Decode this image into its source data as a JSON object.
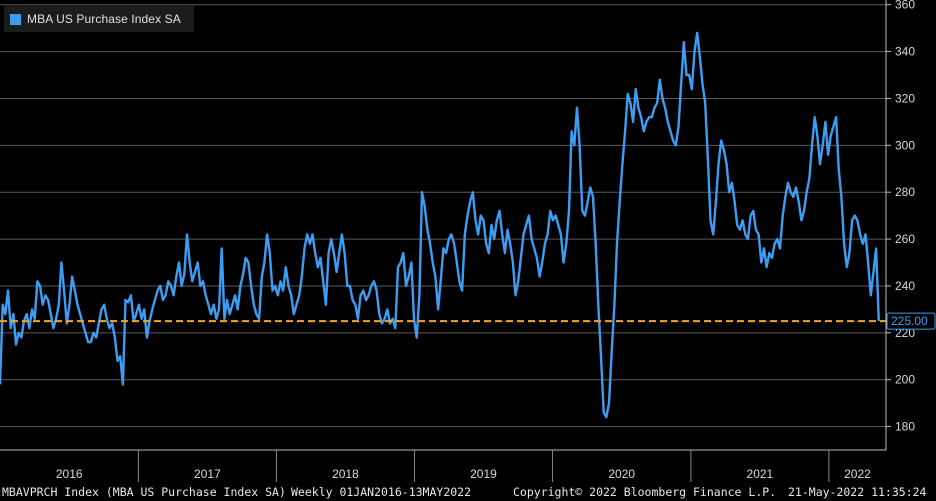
{
  "chart_data": {
    "type": "line",
    "title": "",
    "xlabel": "",
    "ylabel": "",
    "ylim": [
      170,
      362
    ],
    "yticks": [
      180,
      200,
      220,
      240,
      260,
      280,
      300,
      320,
      340,
      360
    ],
    "year_labels": [
      "2016",
      "2017",
      "2018",
      "2019",
      "2020",
      "2021",
      "2022"
    ],
    "grid": true,
    "legend_position": "top-left",
    "series": [
      {
        "name": "MBA US Purchase Index SA",
        "color": "#3d9df3",
        "x_start": "2016-01-01",
        "x_end": "2022-05-13",
        "values": [
          198,
          232,
          228,
          238,
          222,
          228,
          215,
          220,
          218,
          225,
          228,
          222,
          230,
          226,
          242,
          240,
          232,
          236,
          234,
          228,
          222,
          226,
          232,
          250,
          238,
          224,
          232,
          244,
          238,
          232,
          228,
          224,
          220,
          216,
          216,
          220,
          218,
          224,
          230,
          232,
          226,
          222,
          224,
          218,
          208,
          210,
          198,
          234,
          233,
          236,
          225,
          228,
          232,
          226,
          230,
          218,
          225,
          230,
          234,
          238,
          240,
          234,
          236,
          242,
          240,
          236,
          244,
          250,
          240,
          245,
          262,
          250,
          242,
          246,
          250,
          240,
          242,
          236,
          232,
          228,
          232,
          226,
          230,
          256,
          226,
          234,
          228,
          232,
          236,
          230,
          240,
          245,
          252,
          250,
          240,
          232,
          228,
          226,
          244,
          250,
          262,
          254,
          238,
          240,
          236,
          242,
          238,
          248,
          240,
          236,
          228,
          232,
          236,
          244,
          256,
          262,
          258,
          262,
          254,
          248,
          252,
          242,
          232,
          254,
          260,
          254,
          246,
          254,
          262,
          254,
          240,
          240,
          234,
          232,
          226,
          236,
          238,
          234,
          236,
          240,
          242,
          238,
          228,
          224,
          226,
          230,
          224,
          226,
          222,
          248,
          250,
          254,
          240,
          244,
          250,
          226,
          218,
          236,
          280,
          274,
          264,
          258,
          250,
          244,
          230,
          242,
          256,
          254,
          260,
          262,
          258,
          250,
          242,
          238,
          262,
          270,
          276,
          280,
          268,
          262,
          270,
          268,
          258,
          254,
          266,
          260,
          268,
          272,
          262,
          254,
          264,
          258,
          250,
          236,
          242,
          252,
          262,
          266,
          270,
          260,
          256,
          252,
          244,
          250,
          258,
          262,
          272,
          268,
          270,
          266,
          262,
          250,
          258,
          272,
          306,
          300,
          316,
          300,
          272,
          270,
          276,
          282,
          278,
          258,
          232,
          210,
          186,
          184,
          190,
          212,
          232,
          258,
          276,
          292,
          306,
          322,
          318,
          310,
          324,
          316,
          312,
          306,
          310,
          312,
          312,
          316,
          318,
          328,
          320,
          316,
          310,
          306,
          302,
          300,
          308,
          326,
          344,
          330,
          330,
          324,
          340,
          348,
          338,
          326,
          318,
          294,
          268,
          262,
          276,
          292,
          302,
          298,
          292,
          280,
          284,
          276,
          266,
          264,
          268,
          262,
          260,
          270,
          272,
          264,
          262,
          250,
          256,
          248,
          254,
          252,
          258,
          260,
          256,
          270,
          278,
          284,
          280,
          278,
          282,
          276,
          268,
          272,
          280,
          286,
          300,
          312,
          304,
          292,
          300,
          310,
          296,
          304,
          308,
          312,
          290,
          278,
          258,
          248,
          254,
          268,
          270,
          268,
          262,
          258,
          262,
          250,
          236,
          246,
          256,
          225
        ]
      }
    ],
    "reference_line": {
      "value": 225,
      "label": "225.00",
      "color": "#f5a623"
    }
  },
  "legend": {
    "label": "MBA US Purchase Index SA"
  },
  "footer": {
    "ticker": "MBAVPRCH Index (MBA US Purchase Index SA)",
    "range": "Weekly 01JAN2016-13MAY2022",
    "copyright": "Copyright© 2022 Bloomberg Finance L.P.",
    "timestamp": "21-May-2022 11:35:24"
  }
}
